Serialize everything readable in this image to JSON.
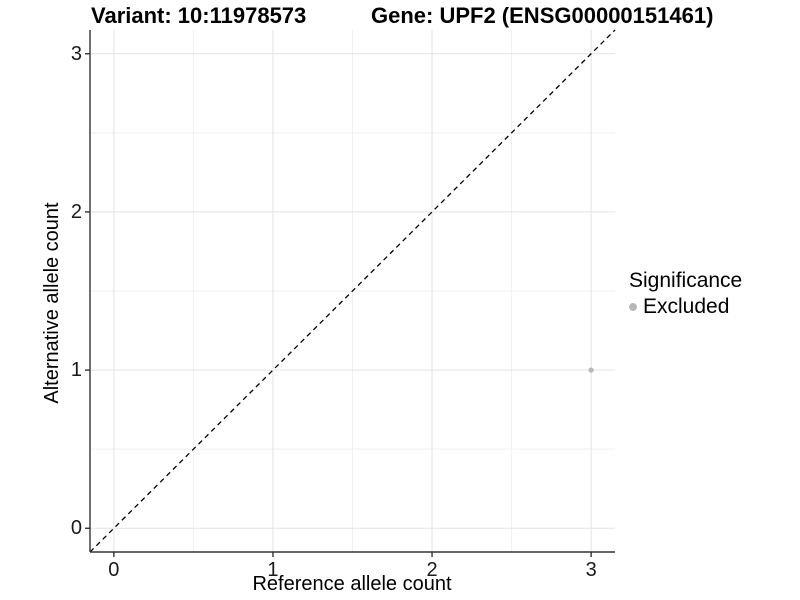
{
  "chart_data": {
    "type": "scatter",
    "title_left": "Variant: 10:11978573",
    "title_right": "Gene: UPF2 (ENSG00000151461)",
    "xlabel": "Reference allele count",
    "ylabel": "Alternative allele count",
    "xlim": [
      -0.15,
      3.15
    ],
    "ylim": [
      -0.15,
      3.15
    ],
    "xticks": [
      0,
      1,
      2,
      3
    ],
    "yticks": [
      0,
      1,
      2,
      3
    ],
    "minor_gridlines": [
      0.5,
      1.5,
      2.5
    ],
    "grid": true,
    "points": [
      {
        "x": 3,
        "y": 1,
        "series": "Excluded"
      }
    ],
    "identity_line": {
      "from": [
        -0.15,
        -0.15
      ],
      "to": [
        3.15,
        3.15
      ],
      "style": "dashed"
    },
    "legend": {
      "title": "Significance",
      "position": "right",
      "items": [
        {
          "label": "Excluded",
          "color": "#b8b8b8"
        }
      ]
    },
    "colors": {
      "point": "#b8b8b8",
      "grid_major": "#e3e3e3",
      "grid_minor": "#f1f1f1",
      "axis_line": "#333333",
      "dashed_line": "#000000",
      "text": "#000000"
    }
  }
}
